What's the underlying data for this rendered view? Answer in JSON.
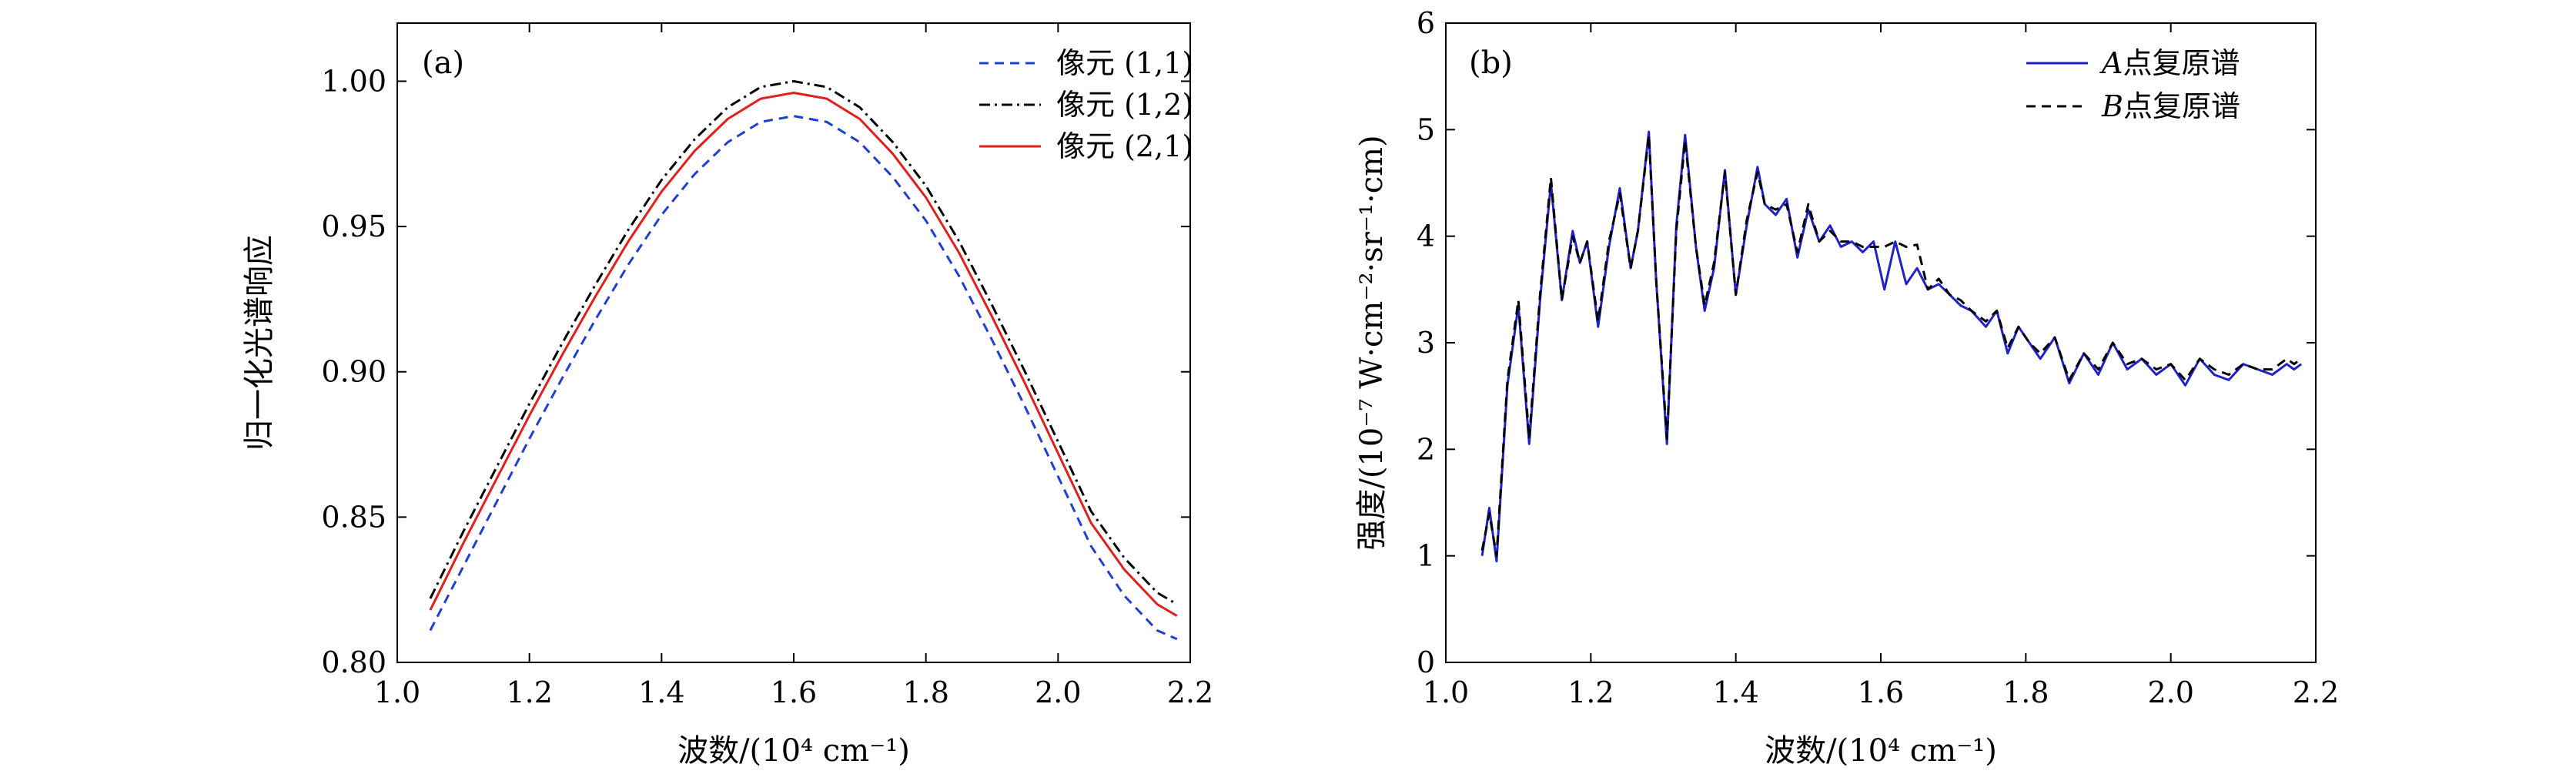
{
  "chart_data": [
    {
      "type": "line",
      "panel_label": "(a)",
      "xlabel": "波数/(10⁴ cm⁻¹)",
      "ylabel": "归一化光谱响应",
      "xlim": [
        1.0,
        2.2
      ],
      "ylim": [
        0.8,
        1.02
      ],
      "xticks": [
        1.0,
        1.2,
        1.4,
        1.6,
        1.8,
        2.0,
        2.2
      ],
      "xtick_labels": [
        "1.0",
        "1.2",
        "1.4",
        "1.6",
        "1.8",
        "2.0",
        "2.2"
      ],
      "yticks": [
        0.8,
        0.85,
        0.9,
        0.95,
        1.0
      ],
      "ytick_labels": [
        "0.80",
        "0.85",
        "0.90",
        "0.95",
        "1.00"
      ],
      "legend_position": "top-right",
      "x": [
        1.05,
        1.1,
        1.15,
        1.2,
        1.25,
        1.3,
        1.35,
        1.4,
        1.45,
        1.5,
        1.55,
        1.6,
        1.65,
        1.7,
        1.75,
        1.8,
        1.85,
        1.9,
        1.95,
        2.0,
        2.05,
        2.1,
        2.15,
        2.18
      ],
      "series": [
        {
          "name": "像元 (1,1)",
          "color": "#1f3fd0",
          "style": "dashed",
          "values": [
            0.811,
            0.833,
            0.855,
            0.877,
            0.898,
            0.918,
            0.937,
            0.954,
            0.968,
            0.979,
            0.986,
            0.988,
            0.986,
            0.979,
            0.967,
            0.952,
            0.933,
            0.911,
            0.888,
            0.864,
            0.84,
            0.823,
            0.811,
            0.808
          ]
        },
        {
          "name": "像元 (1,2)",
          "color": "#000000",
          "style": "dashdot",
          "values": [
            0.822,
            0.845,
            0.867,
            0.889,
            0.91,
            0.93,
            0.949,
            0.966,
            0.98,
            0.991,
            0.998,
            1.0,
            0.998,
            0.991,
            0.979,
            0.964,
            0.945,
            0.923,
            0.9,
            0.876,
            0.852,
            0.836,
            0.824,
            0.82
          ]
        },
        {
          "name": "像元 (2,1)",
          "color": "#e0201a",
          "style": "solid",
          "values": [
            0.818,
            0.841,
            0.863,
            0.885,
            0.906,
            0.926,
            0.945,
            0.962,
            0.976,
            0.987,
            0.994,
            0.996,
            0.994,
            0.987,
            0.975,
            0.96,
            0.941,
            0.919,
            0.896,
            0.872,
            0.848,
            0.832,
            0.82,
            0.816
          ]
        }
      ]
    },
    {
      "type": "line",
      "panel_label": "(b)",
      "xlabel": "波数/(10⁴ cm⁻¹)",
      "ylabel": "强度/(10⁻⁷ W·cm⁻²·sr⁻¹·cm)",
      "xlim": [
        1.0,
        2.2
      ],
      "ylim": [
        0,
        6
      ],
      "xticks": [
        1.0,
        1.2,
        1.4,
        1.6,
        1.8,
        2.0,
        2.2
      ],
      "xtick_labels": [
        "1.0",
        "1.2",
        "1.4",
        "1.6",
        "1.8",
        "2.0",
        "2.2"
      ],
      "yticks": [
        0,
        1,
        2,
        3,
        4,
        5,
        6
      ],
      "ytick_labels": [
        "0",
        "1",
        "2",
        "3",
        "4",
        "5",
        "6"
      ],
      "legend_position": "top-right",
      "series": [
        {
          "name": "A点复原谱",
          "legend_italic": "A",
          "legend_rest": "点复原谱",
          "color": "#1f22c8",
          "style": "solid",
          "x": [
            1.05,
            1.06,
            1.07,
            1.085,
            1.1,
            1.115,
            1.13,
            1.145,
            1.16,
            1.175,
            1.185,
            1.195,
            1.21,
            1.225,
            1.24,
            1.255,
            1.265,
            1.28,
            1.29,
            1.305,
            1.318,
            1.33,
            1.345,
            1.357,
            1.37,
            1.385,
            1.4,
            1.415,
            1.43,
            1.44,
            1.455,
            1.47,
            1.485,
            1.5,
            1.515,
            1.53,
            1.545,
            1.56,
            1.575,
            1.59,
            1.605,
            1.62,
            1.635,
            1.65,
            1.665,
            1.68,
            1.695,
            1.71,
            1.725,
            1.745,
            1.76,
            1.775,
            1.79,
            1.805,
            1.82,
            1.84,
            1.86,
            1.88,
            1.9,
            1.92,
            1.94,
            1.96,
            1.98,
            2.0,
            2.02,
            2.04,
            2.06,
            2.08,
            2.1,
            2.12,
            2.14,
            2.16,
            2.17,
            2.18
          ],
          "values": [
            1.0,
            1.45,
            0.95,
            2.6,
            3.35,
            2.05,
            3.4,
            4.5,
            3.4,
            4.05,
            3.75,
            3.95,
            3.15,
            3.9,
            4.45,
            3.7,
            4.05,
            4.98,
            3.6,
            2.05,
            4.1,
            4.95,
            3.9,
            3.3,
            3.7,
            4.62,
            3.45,
            4.1,
            4.65,
            4.3,
            4.2,
            4.35,
            3.8,
            4.25,
            3.95,
            4.1,
            3.9,
            3.95,
            3.85,
            3.95,
            3.5,
            3.95,
            3.55,
            3.7,
            3.5,
            3.55,
            3.45,
            3.35,
            3.3,
            3.15,
            3.3,
            2.9,
            3.15,
            3.0,
            2.85,
            3.05,
            2.62,
            2.9,
            2.7,
            3.0,
            2.75,
            2.85,
            2.7,
            2.8,
            2.6,
            2.85,
            2.7,
            2.65,
            2.8,
            2.75,
            2.7,
            2.8,
            2.75,
            2.8
          ]
        },
        {
          "name": "B点复原谱",
          "legend_italic": "B",
          "legend_rest": "点复原谱",
          "color": "#000000",
          "style": "dashed",
          "x": [
            1.05,
            1.06,
            1.07,
            1.085,
            1.1,
            1.115,
            1.13,
            1.145,
            1.16,
            1.175,
            1.185,
            1.195,
            1.21,
            1.225,
            1.24,
            1.255,
            1.265,
            1.28,
            1.29,
            1.305,
            1.318,
            1.33,
            1.345,
            1.357,
            1.37,
            1.385,
            1.4,
            1.415,
            1.43,
            1.44,
            1.455,
            1.47,
            1.485,
            1.5,
            1.515,
            1.53,
            1.545,
            1.56,
            1.575,
            1.59,
            1.605,
            1.62,
            1.635,
            1.65,
            1.665,
            1.68,
            1.695,
            1.71,
            1.725,
            1.745,
            1.76,
            1.775,
            1.79,
            1.805,
            1.82,
            1.84,
            1.86,
            1.88,
            1.9,
            1.92,
            1.94,
            1.96,
            1.98,
            2.0,
            2.02,
            2.04,
            2.06,
            2.08,
            2.1,
            2.12,
            2.14,
            2.16,
            2.17,
            2.18
          ],
          "values": [
            1.05,
            1.4,
            1.0,
            2.65,
            3.4,
            2.1,
            3.45,
            4.55,
            3.4,
            4.0,
            3.75,
            3.95,
            3.2,
            3.95,
            4.4,
            3.7,
            4.05,
            4.95,
            3.6,
            2.1,
            4.05,
            4.9,
            3.9,
            3.35,
            3.75,
            4.6,
            3.45,
            4.15,
            4.6,
            4.3,
            4.25,
            4.3,
            3.85,
            4.3,
            3.95,
            4.05,
            3.95,
            3.95,
            3.9,
            3.9,
            3.9,
            3.95,
            3.9,
            3.92,
            3.5,
            3.6,
            3.45,
            3.4,
            3.3,
            3.2,
            3.3,
            2.95,
            3.15,
            3.0,
            2.9,
            3.05,
            2.65,
            2.9,
            2.75,
            3.0,
            2.8,
            2.85,
            2.75,
            2.8,
            2.65,
            2.85,
            2.75,
            2.7,
            2.8,
            2.75,
            2.75,
            2.85,
            2.8,
            2.85
          ]
        }
      ]
    }
  ]
}
